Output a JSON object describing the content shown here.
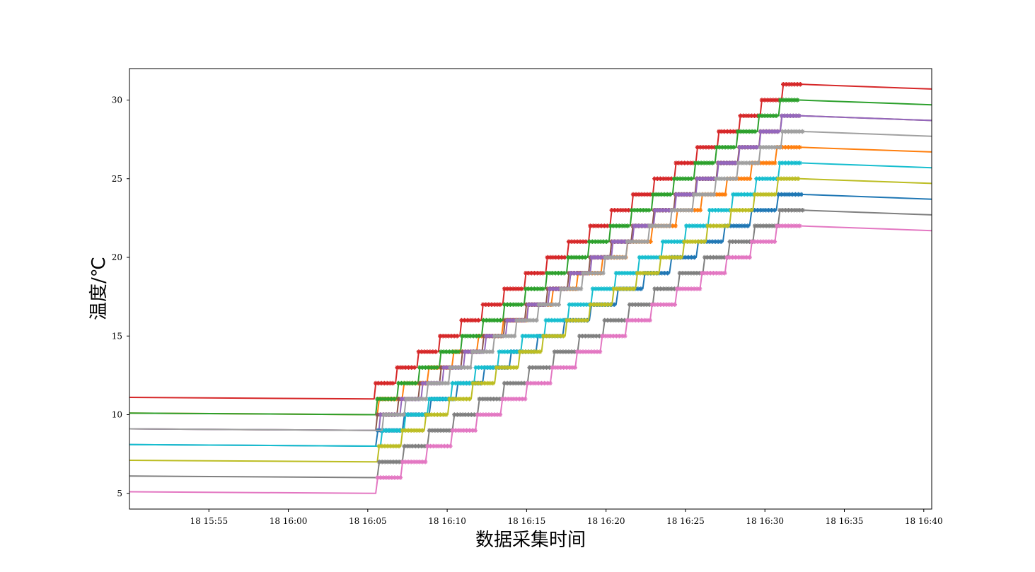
{
  "chart_data": {
    "type": "line",
    "title": "",
    "xlabel": "数据采集时间",
    "ylabel": "温度/℃",
    "x_axis": {
      "unit": "minutes",
      "range": [
        "18 15:50",
        "18 16:40.5"
      ],
      "ticks": [
        {
          "value": "15:55",
          "label": "18 15:55"
        },
        {
          "value": "16:00",
          "label": "18 16:00"
        },
        {
          "value": "16:05",
          "label": "18 16:05"
        },
        {
          "value": "16:10",
          "label": "18 16:10"
        },
        {
          "value": "16:15",
          "label": "18 16:15"
        },
        {
          "value": "16:20",
          "label": "18 16:20"
        },
        {
          "value": "16:25",
          "label": "18 16:25"
        },
        {
          "value": "16:30",
          "label": "18 16:30"
        },
        {
          "value": "16:35",
          "label": "18 16:35"
        },
        {
          "value": "16:40",
          "label": "18 16:40"
        }
      ]
    },
    "y_axis": {
      "range": [
        4,
        32
      ],
      "ticks": [
        5,
        10,
        15,
        20,
        25,
        30
      ]
    },
    "grid": false,
    "legend": "none",
    "series": [
      {
        "color": "#d62728",
        "start_temp": 11.1,
        "hold_temp": 11.0,
        "ramp_start": "16:05.4",
        "ramp_end": "16:32.4",
        "final_temp": 31.0,
        "end_temp": 30.7
      },
      {
        "color": "#ff7f0e",
        "start_temp": 10.1,
        "hold_temp": 10.0,
        "ramp_start": "16:05.6",
        "ramp_end": "16:32.2",
        "final_temp": 27.0,
        "end_temp": 26.7
      },
      {
        "color": "#2ca02c",
        "start_temp": 10.1,
        "hold_temp": 10.0,
        "ramp_start": "16:05.5",
        "ramp_end": "16:32.2",
        "final_temp": 30.0,
        "end_temp": 29.7
      },
      {
        "color": "#8c564b",
        "start_temp": 9.1,
        "hold_temp": 9.0,
        "ramp_start": "16:05.5",
        "ramp_end": "16:32.3",
        "final_temp": 29.0,
        "end_temp": 28.7
      },
      {
        "color": "#9467bd",
        "start_temp": 9.1,
        "hold_temp": 9.0,
        "ramp_start": "16:05.7",
        "ramp_end": "16:32.3",
        "final_temp": 29.0,
        "end_temp": 28.7
      },
      {
        "color": "#1f77b4",
        "start_temp": 8.1,
        "hold_temp": 8.0,
        "ramp_start": "16:05.5",
        "ramp_end": "16:32.4",
        "final_temp": 24.0,
        "end_temp": 23.7
      },
      {
        "color": "#17becf",
        "start_temp": 8.1,
        "hold_temp": 8.0,
        "ramp_start": "16:05.8",
        "ramp_end": "16:32.3",
        "final_temp": 26.0,
        "end_temp": 25.7
      },
      {
        "color": "#bcbd22",
        "start_temp": 7.1,
        "hold_temp": 7.0,
        "ramp_start": "16:05.6",
        "ramp_end": "16:32.2",
        "final_temp": 25.0,
        "end_temp": 24.7
      },
      {
        "color": "#7f7f7f",
        "start_temp": 6.1,
        "hold_temp": 6.0,
        "ramp_start": "16:05.6",
        "ramp_end": "16:32.4",
        "final_temp": 23.0,
        "end_temp": 22.7
      },
      {
        "color": "#e377c2",
        "start_temp": 5.1,
        "hold_temp": 5.0,
        "ramp_start": "16:05.5",
        "ramp_end": "16:32.2",
        "final_temp": 22.0,
        "end_temp": 21.7
      },
      {
        "color": "#a0a0a0",
        "start_temp": 9.1,
        "hold_temp": 9.0,
        "ramp_start": "16:05.9",
        "ramp_end": "16:32.4",
        "final_temp": 28.0,
        "end_temp": 27.7
      }
    ]
  }
}
